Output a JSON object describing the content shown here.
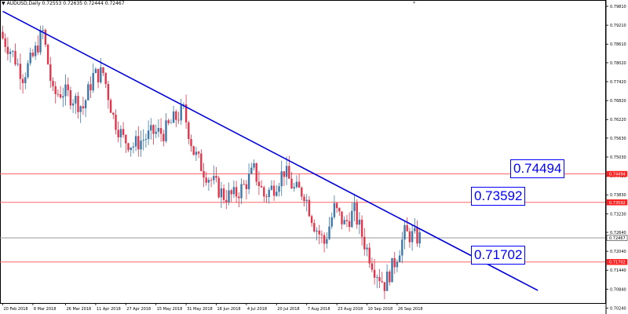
{
  "window": {
    "symbol_info": "AUDUSD,Daily  0.72553 0.72635 0.72444 0.72467",
    "collapse_icon": "triangle-down-icon"
  },
  "colors": {
    "bull": "#3c78a8",
    "bear": "#e0354a",
    "trendline": "#0000dd",
    "level_line": "#ff6666",
    "current_line": "#999999",
    "label_red": "#ff2222",
    "label_current": "#000000"
  },
  "callouts": [
    {
      "id": "upper",
      "text": "0.74494"
    },
    {
      "id": "middle",
      "text": "0.73592"
    },
    {
      "id": "lower",
      "text": "0.71702"
    }
  ],
  "chart_data": {
    "type": "candlestick",
    "price_axis": {
      "range": [
        0.7045,
        0.7991
      ],
      "ticks": [
        "0.79810",
        "0.79210",
        "0.78610",
        "0.78020",
        "0.77420",
        "0.76820",
        "0.76220",
        "0.75630",
        "0.75030",
        "0.74430",
        "0.73830",
        "0.73230",
        "0.72640",
        "0.72040",
        "0.71440",
        "0.70840",
        "0.70240"
      ]
    },
    "date_axis": {
      "ticks": [
        {
          "label": "20 Feb 2018",
          "index": 0
        },
        {
          "label": "8 Mar 2018",
          "index": 12
        },
        {
          "label": "26 Mar 2018",
          "index": 25
        },
        {
          "label": "11 Apr 2018",
          "index": 37
        },
        {
          "label": "27 Apr 2018",
          "index": 49
        },
        {
          "label": "15 May 2018",
          "index": 61
        },
        {
          "label": "31 May 2018",
          "index": 73
        },
        {
          "label": "18 Jun 2018",
          "index": 85
        },
        {
          "label": "4 Jul 2018",
          "index": 97
        },
        {
          "label": "20 Jul 2018",
          "index": 109
        },
        {
          "label": "7 Aug 2018",
          "index": 121
        },
        {
          "label": "23 Aug 2018",
          "index": 133
        },
        {
          "label": "10 Sep 2018",
          "index": 145
        },
        {
          "label": "26 Sep 2018",
          "index": 157
        }
      ]
    },
    "levels": [
      {
        "price": 0.74494,
        "label": "0.74494",
        "kind": "resistance"
      },
      {
        "price": 0.73592,
        "label": "0.73592",
        "kind": "resistance"
      },
      {
        "price": 0.72467,
        "label": "0.72467",
        "kind": "current"
      },
      {
        "price": 0.71702,
        "label": "0.71702",
        "kind": "support"
      }
    ],
    "trendline": {
      "start": {
        "index": 0,
        "price": 0.7965
      },
      "end": {
        "index": 213,
        "price": 0.708
      }
    },
    "ohlc_waypoints": [
      {
        "index": 0,
        "close": 0.788
      },
      {
        "index": 4,
        "close": 0.783
      },
      {
        "index": 8,
        "close": 0.776
      },
      {
        "index": 12,
        "close": 0.782
      },
      {
        "index": 16,
        "close": 0.79
      },
      {
        "index": 20,
        "close": 0.77
      },
      {
        "index": 24,
        "close": 0.771
      },
      {
        "index": 28,
        "close": 0.769
      },
      {
        "index": 32,
        "close": 0.766
      },
      {
        "index": 36,
        "close": 0.776
      },
      {
        "index": 40,
        "close": 0.777
      },
      {
        "index": 44,
        "close": 0.763
      },
      {
        "index": 48,
        "close": 0.756
      },
      {
        "index": 52,
        "close": 0.754
      },
      {
        "index": 56,
        "close": 0.756
      },
      {
        "index": 60,
        "close": 0.758
      },
      {
        "index": 64,
        "close": 0.758
      },
      {
        "index": 68,
        "close": 0.762
      },
      {
        "index": 72,
        "close": 0.765
      },
      {
        "index": 76,
        "close": 0.752
      },
      {
        "index": 80,
        "close": 0.746
      },
      {
        "index": 84,
        "close": 0.742
      },
      {
        "index": 88,
        "close": 0.738
      },
      {
        "index": 92,
        "close": 0.738
      },
      {
        "index": 96,
        "close": 0.741
      },
      {
        "index": 100,
        "close": 0.746
      },
      {
        "index": 104,
        "close": 0.738
      },
      {
        "index": 108,
        "close": 0.741
      },
      {
        "index": 112,
        "close": 0.746
      },
      {
        "index": 116,
        "close": 0.74
      },
      {
        "index": 120,
        "close": 0.739
      },
      {
        "index": 124,
        "close": 0.729
      },
      {
        "index": 128,
        "close": 0.723
      },
      {
        "index": 132,
        "close": 0.734
      },
      {
        "index": 136,
        "close": 0.729
      },
      {
        "index": 140,
        "close": 0.733
      },
      {
        "index": 144,
        "close": 0.723
      },
      {
        "index": 148,
        "close": 0.715
      },
      {
        "index": 152,
        "close": 0.71
      },
      {
        "index": 156,
        "close": 0.717
      },
      {
        "index": 160,
        "close": 0.726
      },
      {
        "index": 164,
        "close": 0.725
      },
      {
        "index": 166,
        "close": 0.72467
      }
    ]
  }
}
